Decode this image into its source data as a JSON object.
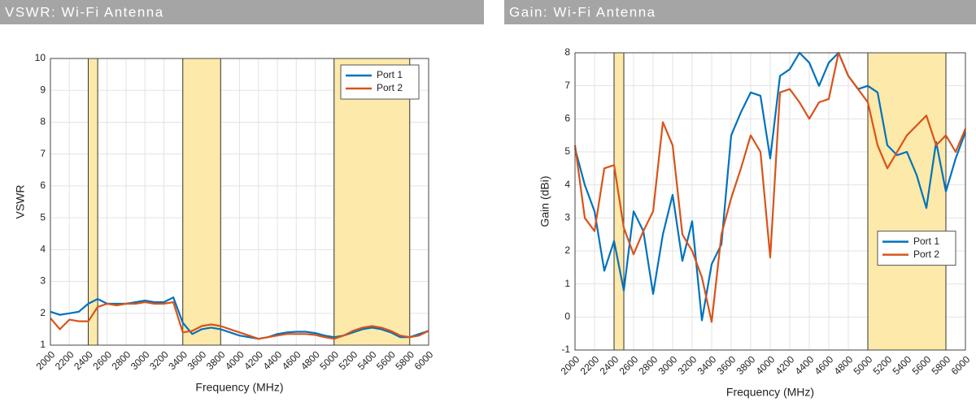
{
  "chart_data": [
    {
      "type": "line",
      "title": "VSWR: Wi-Fi Antenna",
      "xlabel": "Frequency (MHz)",
      "ylabel": "VSWR",
      "x": [
        2000,
        2100,
        2200,
        2300,
        2400,
        2500,
        2600,
        2700,
        2800,
        2900,
        3000,
        3100,
        3200,
        3300,
        3400,
        3500,
        3600,
        3700,
        3800,
        3900,
        4000,
        4100,
        4200,
        4300,
        4400,
        4500,
        4600,
        4700,
        4800,
        4900,
        5000,
        5100,
        5200,
        5300,
        5400,
        5500,
        5600,
        5700,
        5800,
        5900,
        6000
      ],
      "series": [
        {
          "name": "Port 1",
          "color": "#0072bd",
          "values": [
            2.05,
            1.95,
            2.0,
            2.05,
            2.3,
            2.45,
            2.3,
            2.3,
            2.3,
            2.35,
            2.4,
            2.35,
            2.35,
            2.5,
            1.7,
            1.35,
            1.5,
            1.55,
            1.5,
            1.4,
            1.3,
            1.25,
            1.2,
            1.25,
            1.35,
            1.4,
            1.42,
            1.42,
            1.38,
            1.3,
            1.25,
            1.3,
            1.4,
            1.5,
            1.55,
            1.5,
            1.4,
            1.25,
            1.25,
            1.35,
            1.45
          ]
        },
        {
          "name": "Port 2",
          "color": "#d95319",
          "values": [
            1.85,
            1.5,
            1.8,
            1.75,
            1.75,
            2.2,
            2.3,
            2.25,
            2.3,
            2.3,
            2.35,
            2.3,
            2.3,
            2.35,
            1.4,
            1.45,
            1.6,
            1.65,
            1.6,
            1.5,
            1.4,
            1.3,
            1.2,
            1.25,
            1.3,
            1.35,
            1.35,
            1.35,
            1.32,
            1.25,
            1.2,
            1.3,
            1.45,
            1.55,
            1.6,
            1.55,
            1.45,
            1.3,
            1.25,
            1.3,
            1.45
          ]
        }
      ],
      "bands": [
        [
          2400,
          2500
        ],
        [
          3400,
          3800
        ],
        [
          5000,
          5800
        ]
      ],
      "band_color": "#fde9a9",
      "xlim": [
        2000,
        6000
      ],
      "xticks": [
        2000,
        2200,
        2400,
        2600,
        2800,
        3000,
        3200,
        3400,
        3600,
        3800,
        4000,
        4200,
        4400,
        4600,
        4800,
        5000,
        5200,
        5400,
        5600,
        5800,
        6000
      ],
      "ylim": [
        1,
        10
      ],
      "yticks": [
        1,
        2,
        3,
        4,
        5,
        6,
        7,
        8,
        9,
        10
      ],
      "grid": true,
      "legend": "upper right"
    },
    {
      "type": "line",
      "title": "Gain: Wi-Fi Antenna",
      "xlabel": "Frequency (MHz)",
      "ylabel": "Gain (dBi)",
      "x": [
        2000,
        2100,
        2200,
        2300,
        2400,
        2500,
        2600,
        2700,
        2800,
        2900,
        3000,
        3100,
        3200,
        3300,
        3400,
        3500,
        3600,
        3700,
        3800,
        3900,
        4000,
        4100,
        4200,
        4300,
        4400,
        4500,
        4600,
        4700,
        4800,
        4900,
        5000,
        5100,
        5200,
        5300,
        5400,
        5500,
        5600,
        5700,
        5800,
        5900,
        6000
      ],
      "series": [
        {
          "name": "Port 1",
          "color": "#0072bd",
          "values": [
            5.1,
            4.0,
            3.2,
            1.4,
            2.3,
            0.8,
            3.2,
            2.6,
            0.7,
            2.5,
            3.7,
            1.7,
            2.9,
            -0.1,
            1.6,
            2.2,
            5.5,
            6.2,
            6.8,
            6.7,
            4.8,
            7.3,
            7.5,
            8.0,
            7.7,
            7.0,
            7.7,
            8.0,
            7.3,
            6.9,
            7.0,
            6.8,
            5.2,
            4.9,
            5.0,
            4.3,
            3.3,
            5.3,
            3.8,
            4.8,
            5.6
          ]
        },
        {
          "name": "Port 2",
          "color": "#d95319",
          "values": [
            5.2,
            3.0,
            2.6,
            4.5,
            4.6,
            2.7,
            1.9,
            2.6,
            3.2,
            5.9,
            5.2,
            2.5,
            2.0,
            1.2,
            -0.15,
            2.5,
            3.6,
            4.5,
            5.5,
            5.0,
            1.8,
            6.8,
            6.9,
            6.5,
            6.0,
            6.5,
            6.6,
            8.0,
            7.3,
            6.9,
            6.5,
            5.2,
            4.5,
            5.0,
            5.5,
            5.8,
            6.1,
            5.2,
            5.5,
            5.0,
            5.7
          ]
        }
      ],
      "bands": [
        [
          2400,
          2500
        ],
        [
          5000,
          5800
        ]
      ],
      "band_color": "#fde9a9",
      "xlim": [
        2000,
        6000
      ],
      "xticks": [
        2000,
        2200,
        2400,
        2600,
        2800,
        3000,
        3200,
        3400,
        3600,
        3800,
        4000,
        4200,
        4400,
        4600,
        4800,
        5000,
        5200,
        5400,
        5600,
        5800,
        6000
      ],
      "ylim": [
        -1,
        8
      ],
      "yticks": [
        -1,
        0,
        1,
        2,
        3,
        4,
        5,
        6,
        7,
        8
      ],
      "grid": true,
      "legend": "right"
    }
  ]
}
